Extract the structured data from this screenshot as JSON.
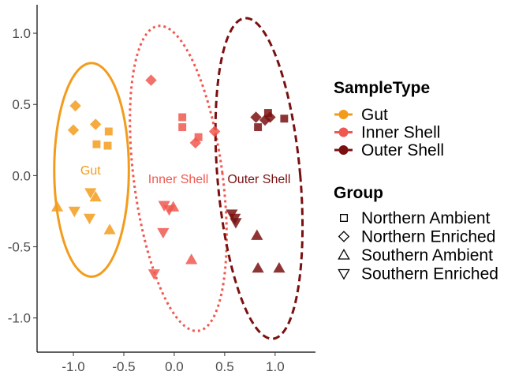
{
  "chart_data": {
    "type": "scatter",
    "title": "",
    "xlabel": "",
    "ylabel": "",
    "xlim": [
      -1.36,
      1.4
    ],
    "ylim": [
      -1.24,
      1.2
    ],
    "x_ticks": [
      -1.0,
      -0.5,
      0.0,
      0.5,
      1.0
    ],
    "x_tick_labels": [
      "-1.0",
      "-0.5",
      "0.0",
      "0.5",
      "1.0"
    ],
    "y_ticks": [
      1.0,
      0.5,
      0.0,
      -0.5,
      -1.0
    ],
    "y_tick_labels": [
      "1.0",
      "0.5",
      "0.0",
      "-0.5",
      "-1.0"
    ],
    "grid": false,
    "legend_position": "right",
    "colors": {
      "Gut": "#F39C1C",
      "Inner Shell": "#F0584F",
      "Outer Shell": "#7B1010"
    },
    "series": [
      {
        "name": "Gut",
        "color": "#F39C1C",
        "points": [
          {
            "x": -0.98,
            "y": 0.49,
            "group": "Northern Enriched"
          },
          {
            "x": -1.0,
            "y": 0.32,
            "group": "Northern Enriched"
          },
          {
            "x": -0.78,
            "y": 0.36,
            "group": "Northern Enriched"
          },
          {
            "x": -0.65,
            "y": 0.31,
            "group": "Northern Ambient"
          },
          {
            "x": -0.77,
            "y": 0.22,
            "group": "Northern Ambient"
          },
          {
            "x": -0.66,
            "y": 0.21,
            "group": "Northern Ambient"
          },
          {
            "x": -1.16,
            "y": -0.22,
            "group": "Southern Ambient"
          },
          {
            "x": -0.78,
            "y": -0.15,
            "group": "Southern Ambient"
          },
          {
            "x": -0.64,
            "y": -0.38,
            "group": "Southern Ambient"
          },
          {
            "x": -0.83,
            "y": -0.12,
            "group": "Southern Enriched"
          },
          {
            "x": -0.99,
            "y": -0.25,
            "group": "Southern Enriched"
          },
          {
            "x": -0.84,
            "y": -0.3,
            "group": "Southern Enriched"
          }
        ]
      },
      {
        "name": "Inner Shell",
        "color": "#F0584F",
        "points": [
          {
            "x": -0.23,
            "y": 0.67,
            "group": "Northern Enriched"
          },
          {
            "x": 0.21,
            "y": 0.23,
            "group": "Northern Enriched"
          },
          {
            "x": 0.4,
            "y": 0.31,
            "group": "Northern Enriched"
          },
          {
            "x": 0.08,
            "y": 0.41,
            "group": "Northern Ambient"
          },
          {
            "x": 0.08,
            "y": 0.34,
            "group": "Northern Ambient"
          },
          {
            "x": 0.24,
            "y": 0.27,
            "group": "Northern Ambient"
          },
          {
            "x": -0.01,
            "y": -0.22,
            "group": "Southern Ambient"
          },
          {
            "x": 0.17,
            "y": -0.59,
            "group": "Southern Ambient"
          },
          {
            "x": -0.1,
            "y": -0.21,
            "group": "Southern Enriched"
          },
          {
            "x": -0.05,
            "y": -0.24,
            "group": "Southern Enriched"
          },
          {
            "x": -0.11,
            "y": -0.4,
            "group": "Southern Enriched"
          },
          {
            "x": -0.2,
            "y": -0.69,
            "group": "Southern Enriched"
          }
        ]
      },
      {
        "name": "Outer Shell",
        "color": "#7B1010",
        "points": [
          {
            "x": 0.81,
            "y": 0.41,
            "group": "Northern Enriched"
          },
          {
            "x": 0.9,
            "y": 0.39,
            "group": "Northern Enriched"
          },
          {
            "x": 0.95,
            "y": 0.41,
            "group": "Northern Enriched"
          },
          {
            "x": 0.93,
            "y": 0.44,
            "group": "Northern Ambient"
          },
          {
            "x": 1.09,
            "y": 0.4,
            "group": "Northern Ambient"
          },
          {
            "x": 0.83,
            "y": 0.34,
            "group": "Northern Ambient"
          },
          {
            "x": 0.82,
            "y": -0.42,
            "group": "Southern Ambient"
          },
          {
            "x": 0.83,
            "y": -0.65,
            "group": "Southern Ambient"
          },
          {
            "x": 1.04,
            "y": -0.65,
            "group": "Southern Ambient"
          },
          {
            "x": 0.57,
            "y": -0.27,
            "group": "Southern Enriched"
          },
          {
            "x": 0.6,
            "y": -0.3,
            "group": "Southern Enriched"
          },
          {
            "x": 0.61,
            "y": -0.33,
            "group": "Southern Enriched"
          }
        ]
      }
    ],
    "ellipses": [
      {
        "name": "Gut",
        "label": "Gut",
        "color": "#F39C1C",
        "dash": "solid",
        "cx": -0.82,
        "cy": 0.04,
        "rx": 0.37,
        "ry": 0.75,
        "angle_deg": 0,
        "label_x": -0.83,
        "label_y": 0.04
      },
      {
        "name": "Inner Shell",
        "label": "Inner Shell",
        "color": "#F0584F",
        "dash": "dotted",
        "cx": 0.04,
        "cy": -0.02,
        "rx": 0.44,
        "ry": 1.08,
        "angle_deg": 7.5,
        "label_x": 0.04,
        "label_y": -0.02
      },
      {
        "name": "Outer Shell",
        "label": "Outer Shell",
        "color": "#7B1010",
        "dash": "dashed",
        "cx": 0.84,
        "cy": -0.02,
        "rx": 0.41,
        "ry": 1.13,
        "angle_deg": 5,
        "label_x": 0.84,
        "label_y": -0.02
      }
    ]
  },
  "legend": {
    "sample_type_title": "SampleType",
    "sample_types": [
      {
        "label": "Gut",
        "color": "#F39C1C"
      },
      {
        "label": "Inner Shell",
        "color": "#F0584F"
      },
      {
        "label": "Outer Shell",
        "color": "#7B1010"
      }
    ],
    "group_title": "Group",
    "groups": [
      {
        "label": "Northern Ambient",
        "shape": "square"
      },
      {
        "label": "Northern Enriched",
        "shape": "diamond"
      },
      {
        "label": "Southern Ambient",
        "shape": "triangle-up"
      },
      {
        "label": "Southern Enriched",
        "shape": "triangle-down"
      }
    ]
  }
}
